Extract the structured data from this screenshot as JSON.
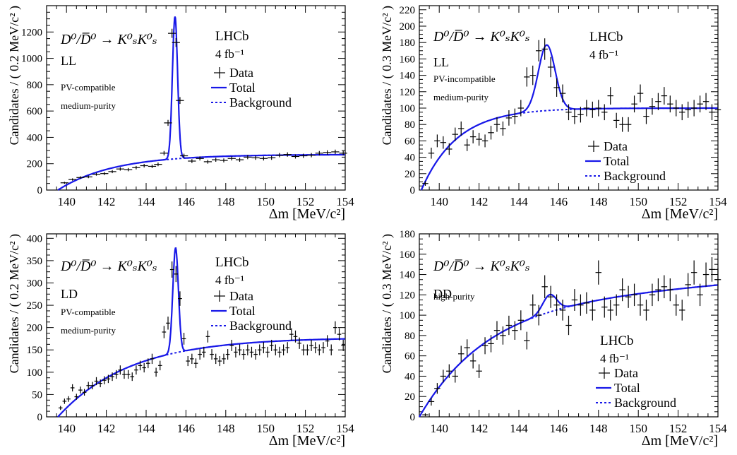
{
  "colors": {
    "fit": "#1818e8",
    "axis": "#000000",
    "data": "#000000"
  },
  "chart_data": [
    {
      "type": "scatter",
      "id": "ll-pv-compatible",
      "xlabel": "Δm [MeV/c²]",
      "ylabel": "Candidates / ( 0.2 MeV/c² )",
      "xlim": [
        139,
        154
      ],
      "ylim": [
        0,
        1400
      ],
      "xticks": [
        140,
        142,
        144,
        146,
        148,
        150,
        152,
        154
      ],
      "yticks": [
        0,
        200,
        400,
        600,
        800,
        1000,
        1200
      ],
      "decay": "D⁰/D̅⁰ → K⁰ₛK⁰ₛ",
      "category": "LL",
      "notes": [
        "PV-compatible",
        "medium-purity"
      ],
      "experiment": "LHCb",
      "lumi": "4 fb⁻¹",
      "legend": [
        "Data",
        "Total",
        "Background"
      ],
      "model": {
        "bkgA": 270,
        "threshold": 139.57,
        "bkgScale": 2.8,
        "bkgLin": 0,
        "peakAmp": 1080,
        "mean": 145.45,
        "sigma": 0.13
      },
      "x": [
        139.9,
        140.3,
        140.7,
        141.1,
        141.5,
        141.9,
        142.3,
        142.7,
        143.1,
        143.5,
        143.9,
        144.3,
        144.6,
        144.9,
        145.1,
        145.3,
        145.5,
        145.7,
        145.9,
        146.3,
        146.7,
        147.1,
        147.5,
        147.9,
        148.3,
        148.7,
        149.1,
        149.5,
        149.9,
        150.3,
        150.7,
        151.1,
        151.5,
        151.9,
        152.3,
        152.7,
        153.1,
        153.5,
        153.9
      ],
      "values": [
        55,
        80,
        95,
        100,
        120,
        125,
        140,
        160,
        155,
        170,
        185,
        180,
        195,
        280,
        510,
        1190,
        1120,
        680,
        260,
        220,
        240,
        215,
        230,
        225,
        240,
        230,
        250,
        245,
        240,
        245,
        265,
        270,
        255,
        260,
        265,
        280,
        285,
        290,
        280
      ]
    },
    {
      "type": "scatter",
      "id": "ll-pv-incompatible",
      "xlabel": "Δm [MeV/c²]",
      "ylabel": "Candidates / ( 0.3 MeV/c² )",
      "xlim": [
        139,
        154
      ],
      "ylim": [
        0,
        225
      ],
      "xticks": [
        140,
        142,
        144,
        146,
        148,
        150,
        152,
        154
      ],
      "yticks": [
        0,
        20,
        40,
        60,
        80,
        100,
        120,
        140,
        160,
        180,
        200,
        220
      ],
      "decay": "D⁰/D̅⁰ → K⁰ₛK⁰ₛ",
      "category": "LL",
      "notes": [
        "PV-incompatible",
        "medium-purity"
      ],
      "experiment": "LHCb",
      "lumi": "4 fb⁻¹",
      "legend": [
        "Data",
        "Total",
        "Background"
      ],
      "model": {
        "bkgA": 100,
        "threshold": 139.1,
        "bkgScale": 1.8,
        "bkgLin": 0,
        "peakAmp": 80,
        "mean": 145.4,
        "sigma": 0.42
      },
      "x": [
        139.3,
        139.6,
        139.9,
        140.2,
        140.5,
        140.8,
        141.1,
        141.4,
        141.7,
        142.0,
        142.3,
        142.6,
        142.9,
        143.2,
        143.5,
        143.8,
        144.1,
        144.4,
        144.7,
        145.0,
        145.3,
        145.6,
        145.9,
        146.2,
        146.5,
        146.8,
        147.1,
        147.4,
        147.7,
        148.0,
        148.3,
        148.6,
        148.9,
        149.2,
        149.5,
        149.8,
        150.1,
        150.4,
        150.7,
        151.0,
        151.3,
        151.6,
        151.9,
        152.2,
        152.5,
        152.8,
        153.1,
        153.4,
        153.7,
        154.0
      ],
      "values": [
        8,
        45,
        60,
        58,
        50,
        68,
        75,
        55,
        65,
        62,
        60,
        70,
        80,
        75,
        88,
        90,
        100,
        138,
        140,
        170,
        172,
        150,
        125,
        118,
        95,
        90,
        92,
        100,
        98,
        100,
        95,
        115,
        85,
        80,
        80,
        105,
        118,
        90,
        102,
        108,
        115,
        105,
        100,
        95,
        98,
        100,
        105,
        108,
        95,
        98
      ]
    },
    {
      "type": "scatter",
      "id": "ld-pv-compatible",
      "xlabel": "Δm [MeV/c²]",
      "ylabel": "Candidates / ( 0.2 MeV/c² )",
      "xlim": [
        139,
        154
      ],
      "ylim": [
        0,
        410
      ],
      "xticks": [
        140,
        142,
        144,
        146,
        148,
        150,
        152,
        154
      ],
      "yticks": [
        0,
        50,
        100,
        150,
        200,
        250,
        300,
        350,
        400
      ],
      "decay": "D⁰/D̅⁰ → K⁰ₛK⁰ₛ",
      "category": "LD",
      "notes": [
        "PV-compatible",
        "medium-purity"
      ],
      "experiment": "LHCb",
      "lumi": "4 fb⁻¹",
      "legend": [
        "Data",
        "Total",
        "Background"
      ],
      "model": {
        "bkgA": 178,
        "threshold": 139.57,
        "bkgScale": 3.6,
        "bkgLin": 0,
        "peakAmp": 235,
        "mean": 145.48,
        "sigma": 0.14
      },
      "x": [
        139.7,
        139.9,
        140.1,
        140.3,
        140.5,
        140.7,
        140.9,
        141.1,
        141.3,
        141.5,
        141.7,
        141.9,
        142.1,
        142.3,
        142.5,
        142.7,
        142.9,
        143.1,
        143.3,
        143.5,
        143.7,
        143.9,
        144.1,
        144.3,
        144.5,
        144.7,
        144.9,
        145.1,
        145.3,
        145.5,
        145.7,
        145.9,
        146.1,
        146.3,
        146.5,
        146.7,
        146.9,
        147.1,
        147.3,
        147.5,
        147.7,
        147.9,
        148.1,
        148.3,
        148.5,
        148.7,
        148.9,
        149.1,
        149.3,
        149.5,
        149.7,
        149.9,
        150.1,
        150.3,
        150.5,
        150.7,
        150.9,
        151.1,
        151.3,
        151.5,
        151.7,
        151.9,
        152.1,
        152.3,
        152.5,
        152.7,
        152.9,
        153.1,
        153.3,
        153.5,
        153.7,
        153.9
      ],
      "values": [
        20,
        35,
        40,
        65,
        45,
        60,
        55,
        70,
        70,
        80,
        75,
        82,
        85,
        90,
        95,
        105,
        95,
        95,
        90,
        105,
        115,
        110,
        120,
        130,
        100,
        115,
        190,
        210,
        330,
        320,
        265,
        175,
        125,
        130,
        120,
        140,
        145,
        180,
        140,
        130,
        125,
        130,
        140,
        160,
        145,
        150,
        140,
        150,
        145,
        140,
        150,
        155,
        145,
        160,
        150,
        145,
        150,
        155,
        185,
        180,
        165,
        150,
        150,
        160,
        155,
        150,
        155,
        170,
        150,
        200,
        185,
        160
      ]
    },
    {
      "type": "scatter",
      "id": "dd-high-purity",
      "xlabel": "Δm [MeV/c²]",
      "ylabel": "Candidates / ( 0.3 MeV/c² )",
      "xlim": [
        139,
        154
      ],
      "ylim": [
        0,
        180
      ],
      "xticks": [
        140,
        142,
        144,
        146,
        148,
        150,
        152,
        154
      ],
      "yticks": [
        0,
        20,
        40,
        60,
        80,
        100,
        120,
        140,
        160,
        180
      ],
      "decay": "D⁰/D̅⁰ → K⁰ₛK⁰ₛ",
      "category": "DD",
      "notes": [
        "high-purity"
      ],
      "experiment": "LHCb",
      "lumi": "4 fb⁻¹",
      "legend": [
        "Data",
        "Total",
        "Background"
      ],
      "model": {
        "bkgA": 110,
        "threshold": 139.0,
        "bkgScale": 3.4,
        "bkgLin": 1.4,
        "peakAmp": 17,
        "mean": 145.55,
        "sigma": 0.35
      },
      "x": [
        139.3,
        139.6,
        139.9,
        140.2,
        140.5,
        140.8,
        141.1,
        141.4,
        141.7,
        142.0,
        142.3,
        142.6,
        142.9,
        143.2,
        143.5,
        143.8,
        144.1,
        144.4,
        144.7,
        145.0,
        145.3,
        145.6,
        145.9,
        146.2,
        146.5,
        146.8,
        147.1,
        147.4,
        147.7,
        148.0,
        148.3,
        148.6,
        148.9,
        149.2,
        149.5,
        149.8,
        150.1,
        150.4,
        150.7,
        151.0,
        151.3,
        151.6,
        151.9,
        152.2,
        152.5,
        152.8,
        153.1,
        153.4,
        153.7,
        154.0
      ],
      "values": [
        2,
        15,
        28,
        40,
        45,
        40,
        62,
        68,
        55,
        45,
        70,
        72,
        85,
        80,
        90,
        85,
        95,
        75,
        110,
        100,
        128,
        118,
        110,
        105,
        90,
        115,
        110,
        112,
        105,
        142,
        108,
        105,
        110,
        125,
        118,
        120,
        110,
        105,
        120,
        125,
        128,
        125,
        110,
        105,
        130,
        142,
        120,
        140,
        145,
        135
      ]
    }
  ]
}
